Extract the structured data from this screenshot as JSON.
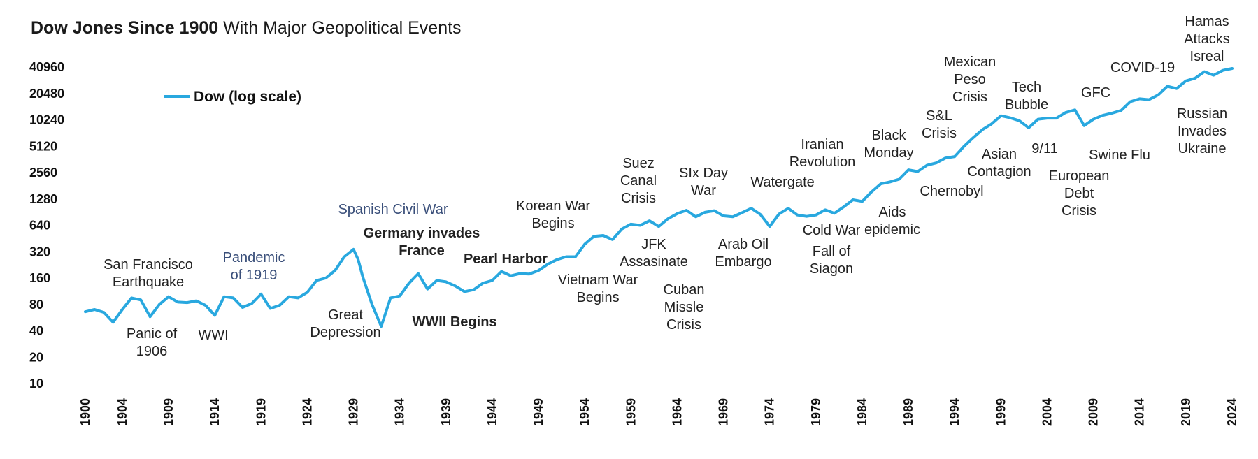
{
  "title": {
    "bold": "Dow Jones Since 1900",
    "rest": " With Major Geopolitical Events"
  },
  "legend": {
    "label": "Dow (log scale)"
  },
  "colors": {
    "line": "#29a8df",
    "annotation": "#222222",
    "annotation_blue": "#3a4f7a"
  },
  "chart_data": {
    "type": "line",
    "title": "Dow Jones Since 1900 With Major Geopolitical Events",
    "y_scale": "log2",
    "ylim": [
      10,
      50000
    ],
    "xlim": [
      1900,
      2024
    ],
    "y_ticks": [
      10,
      20,
      40,
      80,
      160,
      320,
      640,
      1280,
      2560,
      5120,
      10240,
      20480,
      40960
    ],
    "x_ticks": [
      1900,
      1904,
      1909,
      1914,
      1919,
      1924,
      1929,
      1934,
      1939,
      1944,
      1949,
      1954,
      1959,
      1964,
      1969,
      1974,
      1979,
      1984,
      1989,
      1994,
      1999,
      2004,
      2009,
      2014,
      2019,
      2024
    ],
    "grid": false,
    "legend_position": "top-left",
    "series": [
      {
        "name": "Dow (log scale)",
        "x": [
          1900,
          1901,
          1902,
          1903,
          1904,
          1905,
          1906,
          1907,
          1908,
          1909,
          1910,
          1911,
          1912,
          1913,
          1914,
          1915,
          1916,
          1917,
          1918,
          1919,
          1920,
          1921,
          1922,
          1923,
          1924,
          1925,
          1926,
          1927,
          1928,
          1929,
          1929.5,
          1930,
          1931,
          1932,
          1933,
          1934,
          1935,
          1936,
          1937,
          1938,
          1939,
          1940,
          1941,
          1942,
          1943,
          1944,
          1945,
          1946,
          1947,
          1948,
          1949,
          1950,
          1951,
          1952,
          1953,
          1954,
          1955,
          1956,
          1957,
          1958,
          1959,
          1960,
          1961,
          1962,
          1963,
          1964,
          1965,
          1966,
          1967,
          1968,
          1969,
          1970,
          1971,
          1972,
          1973,
          1974,
          1975,
          1976,
          1977,
          1978,
          1979,
          1980,
          1981,
          1982,
          1983,
          1984,
          1985,
          1986,
          1987,
          1988,
          1989,
          1990,
          1991,
          1992,
          1993,
          1994,
          1995,
          1996,
          1997,
          1998,
          1999,
          2000,
          2001,
          2002,
          2003,
          2004,
          2005,
          2006,
          2007,
          2008,
          2009,
          2010,
          2011,
          2012,
          2013,
          2014,
          2015,
          2016,
          2017,
          2018,
          2019,
          2020,
          2021,
          2022,
          2023,
          2024
        ],
        "y": [
          66,
          70,
          65,
          50,
          70,
          95,
          90,
          58,
          80,
          98,
          85,
          84,
          88,
          78,
          60,
          98,
          95,
          74,
          82,
          105,
          72,
          78,
          98,
          95,
          110,
          150,
          160,
          195,
          280,
          340,
          260,
          165,
          80,
          45,
          95,
          100,
          140,
          180,
          120,
          150,
          145,
          130,
          112,
          118,
          140,
          150,
          190,
          170,
          180,
          178,
          195,
          230,
          260,
          280,
          280,
          390,
          480,
          490,
          440,
          580,
          660,
          640,
          720,
          620,
          760,
          870,
          950,
          800,
          900,
          940,
          820,
          800,
          890,
          1000,
          850,
          620,
          860,
          1000,
          840,
          810,
          840,
          960,
          880,
          1040,
          1250,
          1200,
          1540,
          1900,
          2000,
          2150,
          2750,
          2630,
          3100,
          3300,
          3750,
          3900,
          5100,
          6400,
          7900,
          9200,
          11400,
          10800,
          10000,
          8300,
          10400,
          10700,
          10700,
          12400,
          13300,
          8800,
          10400,
          11500,
          12200,
          13100,
          16500,
          17800,
          17400,
          19700,
          24700,
          23300,
          28500,
          30600,
          36300,
          33100,
          37600,
          39500
        ]
      }
    ],
    "annotations": [
      "San Francisco",
      "Earthquake",
      "Panic of",
      "1906",
      "WWI",
      "Pandemic",
      "of 1919",
      "Spanish Civil War",
      "Great",
      "Depression",
      "Germany invades",
      "France",
      "WWII Begins",
      "Pearl Harbor",
      "Korean War",
      "Begins",
      "Vietnam War",
      "Begins",
      "Suez",
      "Canal",
      "Crisis",
      "JFK",
      "Assasinate",
      "Cuban",
      "Missle",
      "Crisis",
      "SIx Day",
      "War",
      "Watergate",
      "Arab Oil",
      "Embargo",
      "Iranian",
      "Revolution",
      "Cold War",
      "Fall of",
      "Siagon",
      "Black",
      "Monday",
      "Aids",
      "epidemic",
      "S&L",
      "Crisis",
      "Chernobyl",
      "Mexican",
      "Peso",
      "Crisis",
      "Tech",
      "Bubble",
      "Asian",
      "Contagion",
      "9/11",
      "European",
      "Debt",
      "Crisis",
      "GFC",
      "Swine  Flu",
      "COVID-19",
      "Hamas",
      "Attacks",
      "Isreal",
      "Russian",
      "Invades",
      "Ukraine"
    ]
  }
}
